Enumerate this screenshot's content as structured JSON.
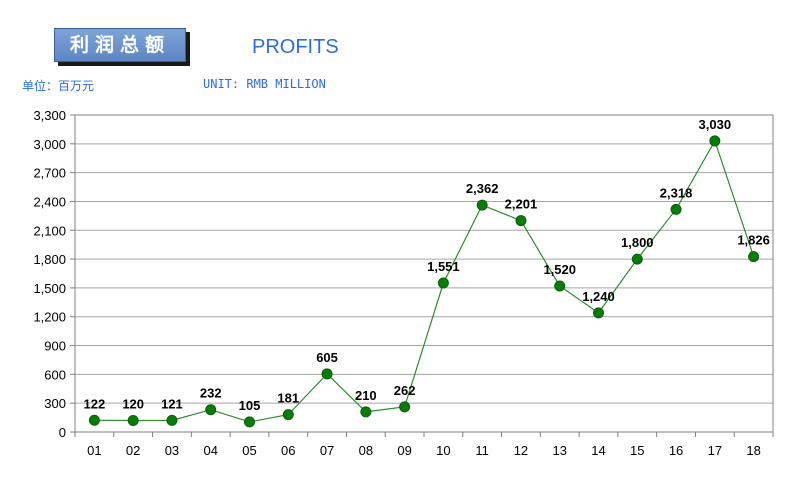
{
  "header": {
    "title_cn": "利润总额",
    "title_en": "PROFITS",
    "unit_cn": "单位：百万元",
    "unit_en": "UNIT: RMB MILLION"
  },
  "chart_data": {
    "type": "line",
    "categories": [
      "01",
      "02",
      "03",
      "04",
      "05",
      "06",
      "07",
      "08",
      "09",
      "10",
      "11",
      "12",
      "13",
      "14",
      "15",
      "16",
      "17",
      "18"
    ],
    "values": [
      122,
      120,
      121,
      232,
      105,
      181,
      605,
      210,
      262,
      1551,
      2362,
      2201,
      1520,
      1240,
      1800,
      2318,
      3030,
      1826
    ],
    "data_labels": [
      "122",
      "120",
      "121",
      "232",
      "105",
      "181",
      "605",
      "210",
      "262",
      "1,551",
      "2,362",
      "2,201",
      "1,520",
      "1,240",
      "1,800",
      "2,318",
      "3,030",
      "1,826"
    ],
    "yticks": [
      0,
      300,
      600,
      900,
      1200,
      1500,
      1800,
      2100,
      2400,
      2700,
      3000,
      3300
    ],
    "ytick_labels": [
      "0",
      "300",
      "600",
      "900",
      "1,200",
      "1,500",
      "1,800",
      "2,100",
      "2,400",
      "2,700",
      "3,000",
      "3,300"
    ],
    "ylim": [
      0,
      3300
    ],
    "grid": true,
    "colors": {
      "line": "#2e8b2e",
      "marker": "#0a7a0a",
      "grid": "#a6a6a6",
      "axis": "#808080"
    }
  }
}
